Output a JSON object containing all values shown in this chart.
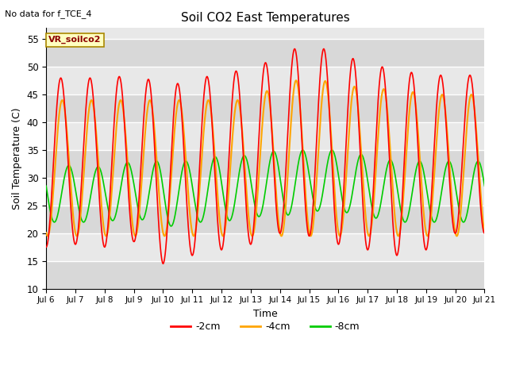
{
  "title": "Soil CO2 East Temperatures",
  "subtitle": "No data for f_TCE_4",
  "xlabel": "Time",
  "ylabel": "Soil Temperature (C)",
  "ylim": [
    10,
    57
  ],
  "yticks": [
    10,
    15,
    20,
    25,
    30,
    35,
    40,
    45,
    50,
    55
  ],
  "x_tick_labels": [
    "Jul 6",
    "Jul 7",
    "Jul 8",
    "Jul 9",
    "Jul 10",
    "Jul 11",
    "Jul 12",
    "Jul 13",
    "Jul 14",
    "Jul 15",
    "Jul 16",
    "Jul 17",
    "Jul 18",
    "Jul 19",
    "Jul 20",
    "Jul 21"
  ],
  "legend_label": "VR_soilco2",
  "line_labels": [
    "-2cm",
    "-4cm",
    "-8cm"
  ],
  "line_colors": [
    "#ff0000",
    "#ffa500",
    "#00cc00"
  ],
  "background_color": "#ffffff",
  "plot_bg_color": "#e8e8e8",
  "grid_color": "#ffffff",
  "n_days": 15,
  "points_per_day": 144,
  "depth_2cm": {
    "trend_min": [
      17.5,
      18,
      17.5,
      18.5,
      14.5,
      16,
      17,
      18,
      20,
      19.5,
      18,
      17,
      16,
      17,
      20,
      20
    ],
    "trend_max": [
      48,
      48,
      48,
      48.5,
      47,
      47,
      49.5,
      49,
      52.5,
      54,
      52.5,
      50.5,
      49.5,
      48.5,
      48.5,
      48.5
    ]
  },
  "depth_4cm": {
    "trend_min": [
      19.5,
      19.5,
      19.5,
      19.5,
      19.5,
      19.5,
      19.5,
      19.5,
      19.5,
      19.5,
      19.5,
      19.5,
      19.5,
      19.5,
      19.5,
      19.5
    ],
    "trend_max": [
      44,
      44,
      44,
      44,
      44,
      44,
      44,
      44,
      47,
      48,
      47,
      46,
      46,
      45,
      45,
      45
    ]
  },
  "depth_8cm": {
    "trend_min": [
      22,
      22,
      22,
      23,
      21,
      22,
      22,
      23,
      23,
      24,
      24,
      23,
      22,
      22,
      22,
      22
    ],
    "trend_max": [
      33,
      32,
      32,
      33,
      33,
      33,
      34,
      34,
      35,
      35,
      35,
      34,
      33,
      33,
      33,
      33
    ]
  },
  "lag_4cm_days": 0.05,
  "lag_8cm_days": 0.28
}
